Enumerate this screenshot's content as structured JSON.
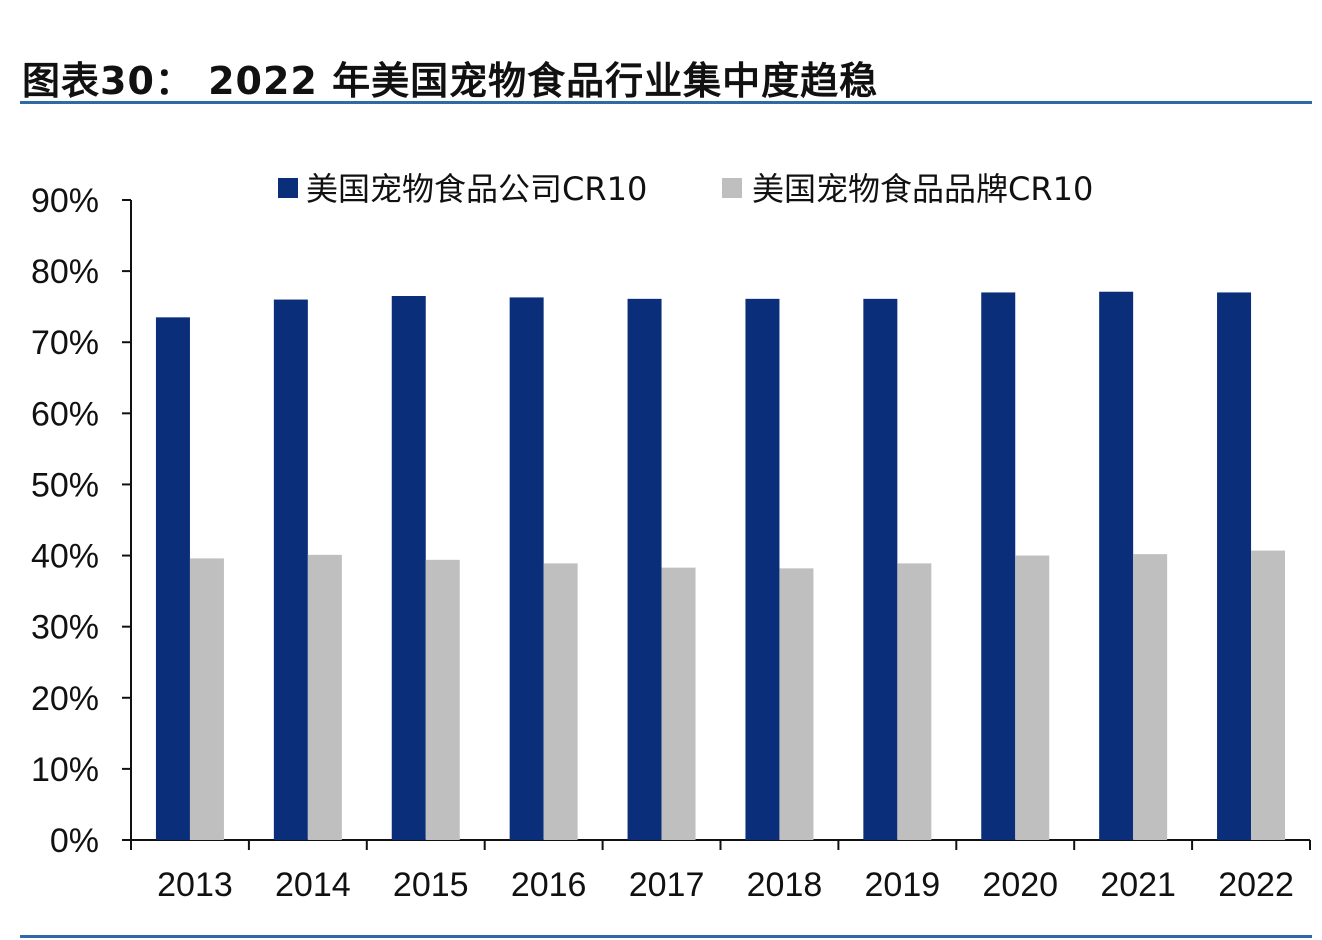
{
  "figure": {
    "title": "图表30： 2022 年美国宠物食品行业集中度趋稳"
  },
  "chart_data": {
    "type": "bar",
    "categories": [
      "2013",
      "2014",
      "2015",
      "2016",
      "2017",
      "2018",
      "2019",
      "2020",
      "2021",
      "2022"
    ],
    "series": [
      {
        "name": "美国宠物食品公司CR10",
        "color": "#0b2e7a",
        "values": [
          73.5,
          76.0,
          76.5,
          76.3,
          76.1,
          76.1,
          76.1,
          77.0,
          77.1,
          77.0
        ]
      },
      {
        "name": "美国宠物食品品牌CR10",
        "color": "#bfbfbf",
        "values": [
          39.6,
          40.1,
          39.4,
          38.9,
          38.3,
          38.2,
          38.9,
          40.0,
          40.2,
          40.7
        ]
      }
    ],
    "ylim": [
      0,
      90
    ],
    "yticks": [
      "0%",
      "10%",
      "20%",
      "30%",
      "40%",
      "50%",
      "60%",
      "70%",
      "80%",
      "90%"
    ],
    "grid": false,
    "legend_position": "top"
  }
}
